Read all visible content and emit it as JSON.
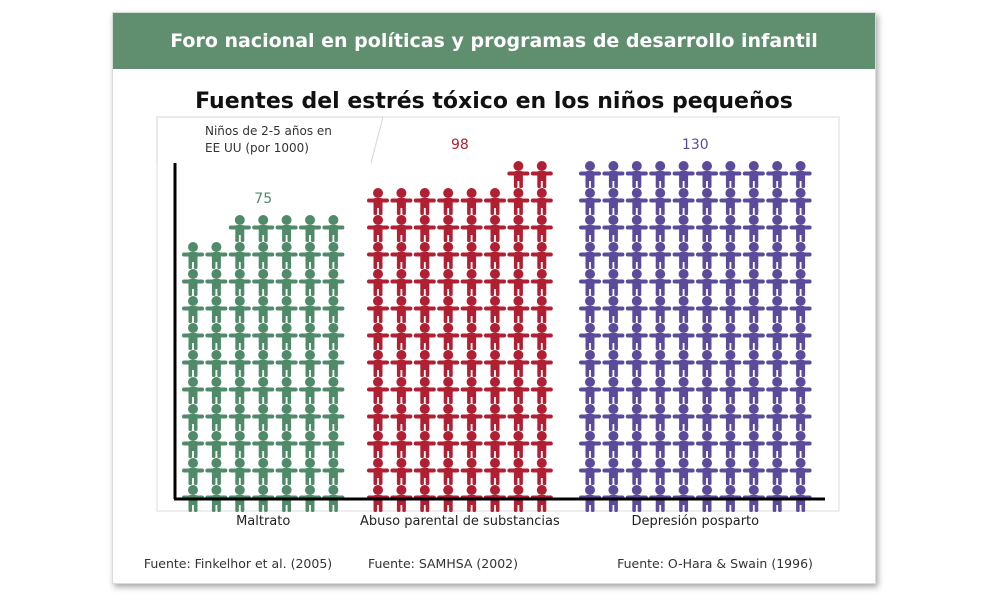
{
  "banner": {
    "text": "Foro nacional en políticas y programas de desarrollo infantil",
    "color": "#5f8f6f"
  },
  "chart_data": {
    "type": "bar",
    "title": "Fuentes del estrés tóxico en los niños pequeños",
    "unit_label": [
      "Niños de 2-5 años en",
      "EE UU (por 1000)"
    ],
    "categories": [
      "Maltrato",
      "Abuso parental de substancias",
      "Depresión posparto"
    ],
    "values": [
      75,
      98,
      130
    ],
    "sources": [
      "Fuente: Finkelhor et al. (2005)",
      "Fuente: SAMHSA (2002)",
      "Fuente: O-Hara & Swain (1996)"
    ],
    "colors": [
      "#4f8a69",
      "#b01f32",
      "#5b4b9a"
    ],
    "icon": "child-figure-icon"
  }
}
